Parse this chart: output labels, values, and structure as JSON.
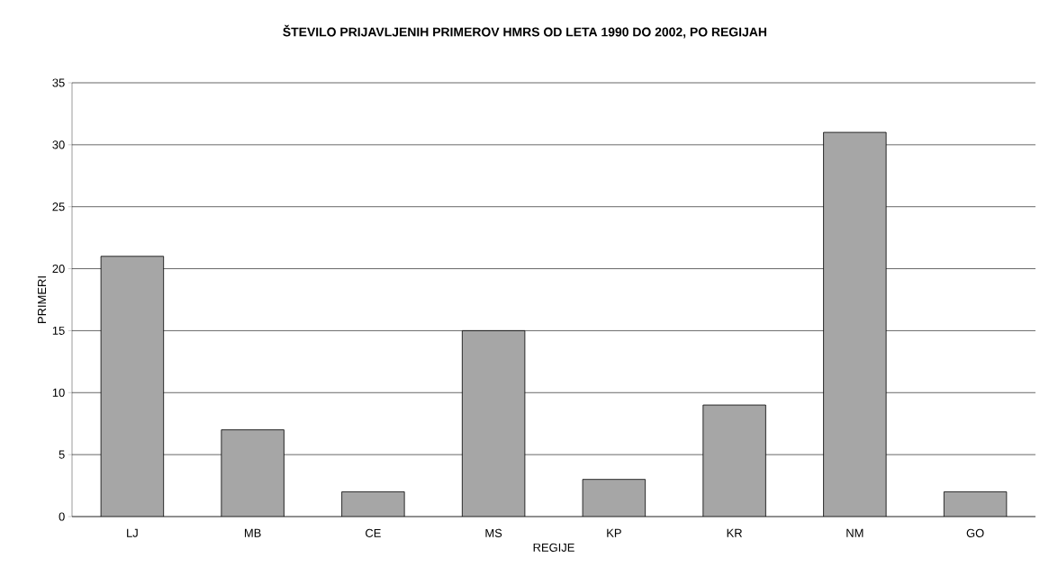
{
  "chart_data": {
    "type": "bar",
    "title": "ŠTEVILO PRIJAVLJENIH PRIMEROV HMRS OD LETA 1990 DO 2002, PO REGIJAH",
    "xlabel": "REGIJE",
    "ylabel": "PRIMERI",
    "categories": [
      "LJ",
      "MB",
      "CE",
      "MS",
      "KP",
      "KR",
      "NM",
      "GO"
    ],
    "values": [
      21,
      7,
      2,
      15,
      3,
      9,
      31,
      2
    ],
    "color": "#a6a6a6",
    "ylim": [
      0,
      35
    ],
    "yticks": [
      0,
      5,
      10,
      15,
      20,
      25,
      30,
      35
    ],
    "grid": "y"
  }
}
